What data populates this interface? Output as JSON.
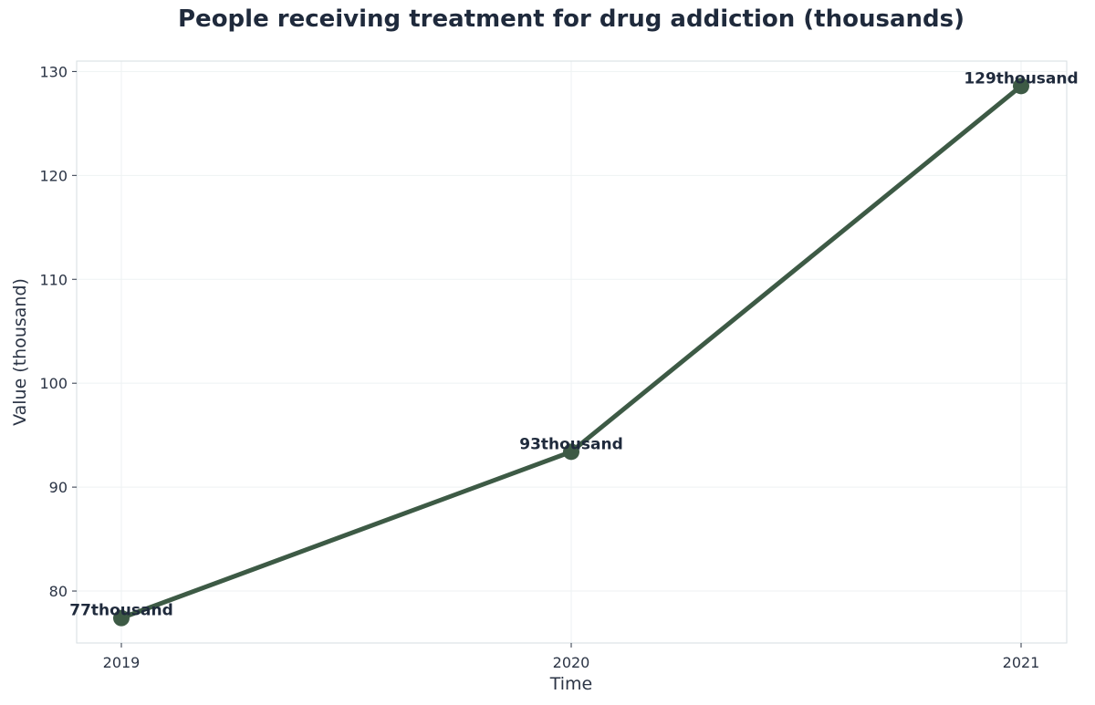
{
  "chart_data": {
    "type": "line",
    "title": "People receiving treatment for drug addiction (thousands)",
    "xlabel": "Time",
    "ylabel": "Value (thousand)",
    "categories": [
      "2019",
      "2020",
      "2021"
    ],
    "series": [
      {
        "values": [
          77.4,
          93.4,
          128.6
        ],
        "data_labels": [
          "77thousand",
          "93thousand",
          "129thousand"
        ]
      }
    ],
    "ylim": [
      75,
      131
    ],
    "yticks": [
      80,
      90,
      100,
      110,
      120,
      130
    ],
    "grid": true,
    "line_color": "#3d5a45",
    "marker_color": "#3d5a45",
    "grid_color": "#eef2f3",
    "frame_color": "#d5dde0"
  }
}
